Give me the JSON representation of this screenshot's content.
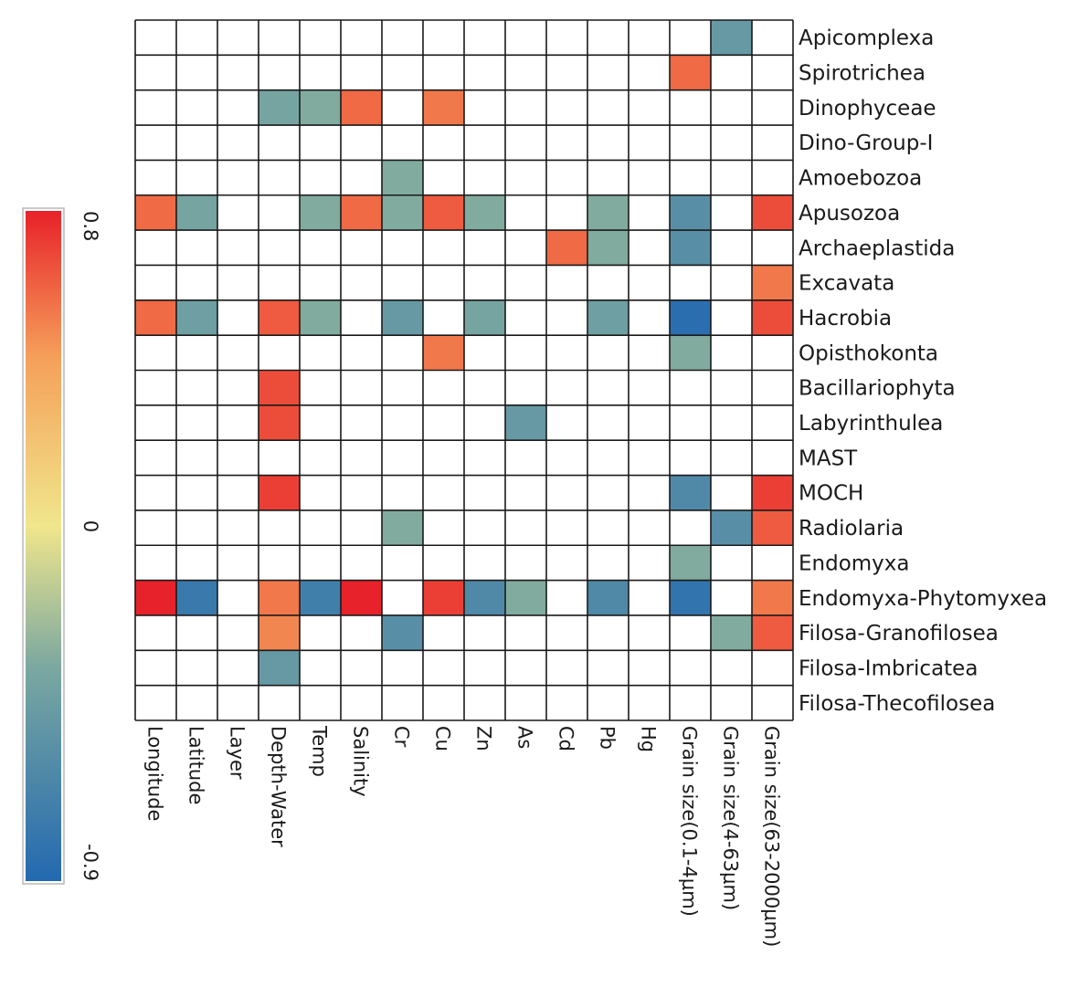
{
  "chart_data": {
    "type": "heatmap",
    "title": "",
    "rows": [
      "Apicomplexa",
      "Spirotrichea",
      "Dinophyceae",
      "Dino-Group-I",
      "Amoebozoa",
      "Apusozoa",
      "Archaeplastida",
      "Excavata",
      "Hacrobia",
      "Opisthokonta",
      "Bacillariophyta",
      "Labyrinthulea",
      "MAST",
      "MOCH",
      "Radiolaria",
      "Endomyxa",
      "Endomyxa-Phytomyxea",
      "Filosa-Granofilosea",
      "Filosa-Imbricatea",
      "Filosa-Thecofilosea"
    ],
    "columns": [
      "Longitude",
      "Latitude",
      "Layer",
      "Depth-Water",
      "Temp",
      "Salinity",
      "Cr",
      "Cu",
      "Zn",
      "As",
      "Cd",
      "Pb",
      "Hg",
      "Grain size(0.1-4μm)",
      "Grain size(4-63μm)",
      "Grain size(63-2000μm)"
    ],
    "values": [
      [
        null,
        null,
        null,
        null,
        null,
        null,
        null,
        null,
        null,
        null,
        null,
        null,
        null,
        null,
        -0.45,
        null
      ],
      [
        null,
        null,
        null,
        null,
        null,
        null,
        null,
        null,
        null,
        null,
        null,
        null,
        null,
        0.55,
        null,
        null
      ],
      [
        null,
        null,
        null,
        -0.35,
        -0.3,
        0.55,
        null,
        0.5,
        null,
        null,
        null,
        null,
        null,
        null,
        null,
        null
      ],
      [
        null,
        null,
        null,
        null,
        null,
        null,
        null,
        null,
        null,
        null,
        null,
        null,
        null,
        null,
        null,
        null
      ],
      [
        null,
        null,
        null,
        null,
        null,
        null,
        -0.3,
        null,
        null,
        null,
        null,
        null,
        null,
        null,
        null,
        null
      ],
      [
        0.55,
        -0.35,
        null,
        null,
        -0.3,
        0.55,
        -0.3,
        0.6,
        -0.3,
        null,
        null,
        -0.3,
        null,
        -0.55,
        null,
        0.65
      ],
      [
        null,
        null,
        null,
        null,
        null,
        null,
        null,
        null,
        null,
        null,
        0.55,
        -0.3,
        null,
        -0.55,
        null,
        null
      ],
      [
        null,
        null,
        null,
        null,
        null,
        null,
        null,
        null,
        null,
        null,
        null,
        null,
        null,
        null,
        null,
        0.5
      ],
      [
        0.55,
        -0.4,
        null,
        0.6,
        -0.3,
        null,
        -0.45,
        null,
        -0.35,
        null,
        null,
        -0.4,
        null,
        -0.85,
        null,
        0.65
      ],
      [
        null,
        null,
        null,
        null,
        null,
        null,
        null,
        0.5,
        null,
        null,
        null,
        null,
        null,
        -0.3,
        null,
        null
      ],
      [
        null,
        null,
        null,
        0.65,
        null,
        null,
        null,
        null,
        null,
        null,
        null,
        null,
        null,
        null,
        null,
        null
      ],
      [
        null,
        null,
        null,
        0.65,
        null,
        null,
        null,
        null,
        null,
        -0.45,
        null,
        null,
        null,
        null,
        null,
        null
      ],
      [
        null,
        null,
        null,
        null,
        null,
        null,
        null,
        null,
        null,
        null,
        null,
        null,
        null,
        null,
        null,
        null
      ],
      [
        null,
        null,
        null,
        0.7,
        null,
        null,
        null,
        null,
        null,
        null,
        null,
        null,
        null,
        -0.6,
        null,
        0.7
      ],
      [
        null,
        null,
        null,
        null,
        null,
        null,
        -0.3,
        null,
        null,
        null,
        null,
        null,
        null,
        null,
        -0.55,
        0.6
      ],
      [
        null,
        null,
        null,
        null,
        null,
        null,
        null,
        null,
        null,
        null,
        null,
        null,
        null,
        -0.3,
        null,
        null
      ],
      [
        0.8,
        -0.75,
        null,
        0.5,
        -0.7,
        0.8,
        null,
        0.7,
        -0.6,
        -0.3,
        null,
        -0.6,
        null,
        -0.8,
        null,
        0.5
      ],
      [
        null,
        null,
        null,
        0.45,
        null,
        null,
        -0.55,
        null,
        null,
        null,
        null,
        null,
        null,
        null,
        -0.3,
        0.6
      ],
      [
        null,
        null,
        null,
        -0.45,
        null,
        null,
        null,
        null,
        null,
        null,
        null,
        null,
        null,
        null,
        null,
        null
      ],
      [
        null,
        null,
        null,
        null,
        null,
        null,
        null,
        null,
        null,
        null,
        null,
        null,
        null,
        null,
        null,
        null
      ]
    ],
    "colorbar": {
      "min": -0.9,
      "max": 0.8,
      "tick_labels": [
        "0.8",
        "0",
        "-0.9"
      ],
      "tick_values": [
        0.8,
        0,
        -0.9
      ],
      "colors": [
        "#2369b0",
        "#7ba8a0",
        "#f0e68c",
        "#f5a05a",
        "#e8222a"
      ],
      "label_rotation": "vertical"
    },
    "empty_cell_color": "#ffffff",
    "grid": true,
    "xlabel": "",
    "ylabel": ""
  }
}
